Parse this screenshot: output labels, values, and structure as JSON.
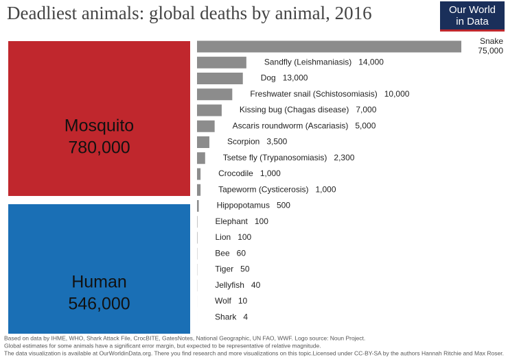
{
  "chart_data": {
    "type": "bar",
    "title": "Deadliest animals: global deaths by animal, 2016",
    "logo": [
      "Our World",
      "in Data"
    ],
    "highlights": [
      {
        "name": "Mosquito",
        "value": 780000,
        "value_label": "780,000",
        "color": "#c0272d"
      },
      {
        "name": "Human",
        "value": 546000,
        "value_label": "546,000",
        "color": "#1a6fb5"
      }
    ],
    "categories": [
      "Snake",
      "Sandfly (Leishmaniasis)",
      "Dog",
      "Freshwater snail (Schistosomiasis)",
      "Kissing bug (Chagas disease)",
      "Ascaris roundworm (Ascariasis)",
      "Scorpion",
      "Tsetse fly (Trypanosomiasis)",
      "Crocodile",
      "Tapeworm (Cysticerosis)",
      "Hippopotamus",
      "Elephant",
      "Lion",
      "Bee",
      "Tiger",
      "Jellyfish",
      "Wolf",
      "Shark"
    ],
    "values": [
      75000,
      14000,
      13000,
      10000,
      7000,
      5000,
      3500,
      2300,
      1000,
      1000,
      500,
      100,
      100,
      60,
      50,
      40,
      10,
      4
    ],
    "value_labels": [
      "75,000",
      "14,000",
      "13,000",
      "10,000",
      "7,000",
      "5,000",
      "3,500",
      "2,300",
      "1,000",
      "1,000",
      "500",
      "100",
      "100",
      "60",
      "50",
      "40",
      "10",
      "4"
    ],
    "color": "#8c8c8c",
    "xlim": [
      0,
      75000
    ],
    "footer": [
      "Based on data by IHME, WHO, Shark Attack File, CrocBITE, GatesNotes, National Geographic, UN FAO, WWF. Logo source: Noun Project.",
      "Global estimates for some animals have a significant error margin, but expected to be representative of relative magnitude.",
      "The data visualization is available at OurWorldinData.org. There you find research and more visualizations on this topic."
    ],
    "license": "Licensed under CC-BY-SA by the authors Hannah Ritchie and Max Roser."
  }
}
